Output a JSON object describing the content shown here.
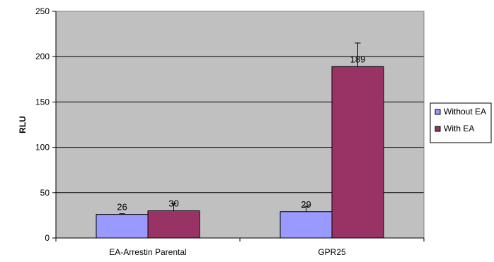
{
  "chart_data": {
    "type": "bar",
    "title": "",
    "xlabel": "",
    "ylabel": "RLU",
    "ylim": [
      0,
      250
    ],
    "yticks": [
      0,
      50,
      100,
      150,
      200,
      250
    ],
    "grid": true,
    "legend_position": "right",
    "categories": [
      "EA-Arrestin Parental",
      "GPR25"
    ],
    "series": [
      {
        "name": "Without EA",
        "color": "#9999FF",
        "values": [
          26,
          29
        ],
        "errors": [
          0.8,
          6
        ]
      },
      {
        "name": "With EA",
        "color": "#993366",
        "values": [
          30,
          189
        ],
        "errors": [
          8,
          26
        ]
      }
    ],
    "plot_background": "#C0C0C0"
  }
}
